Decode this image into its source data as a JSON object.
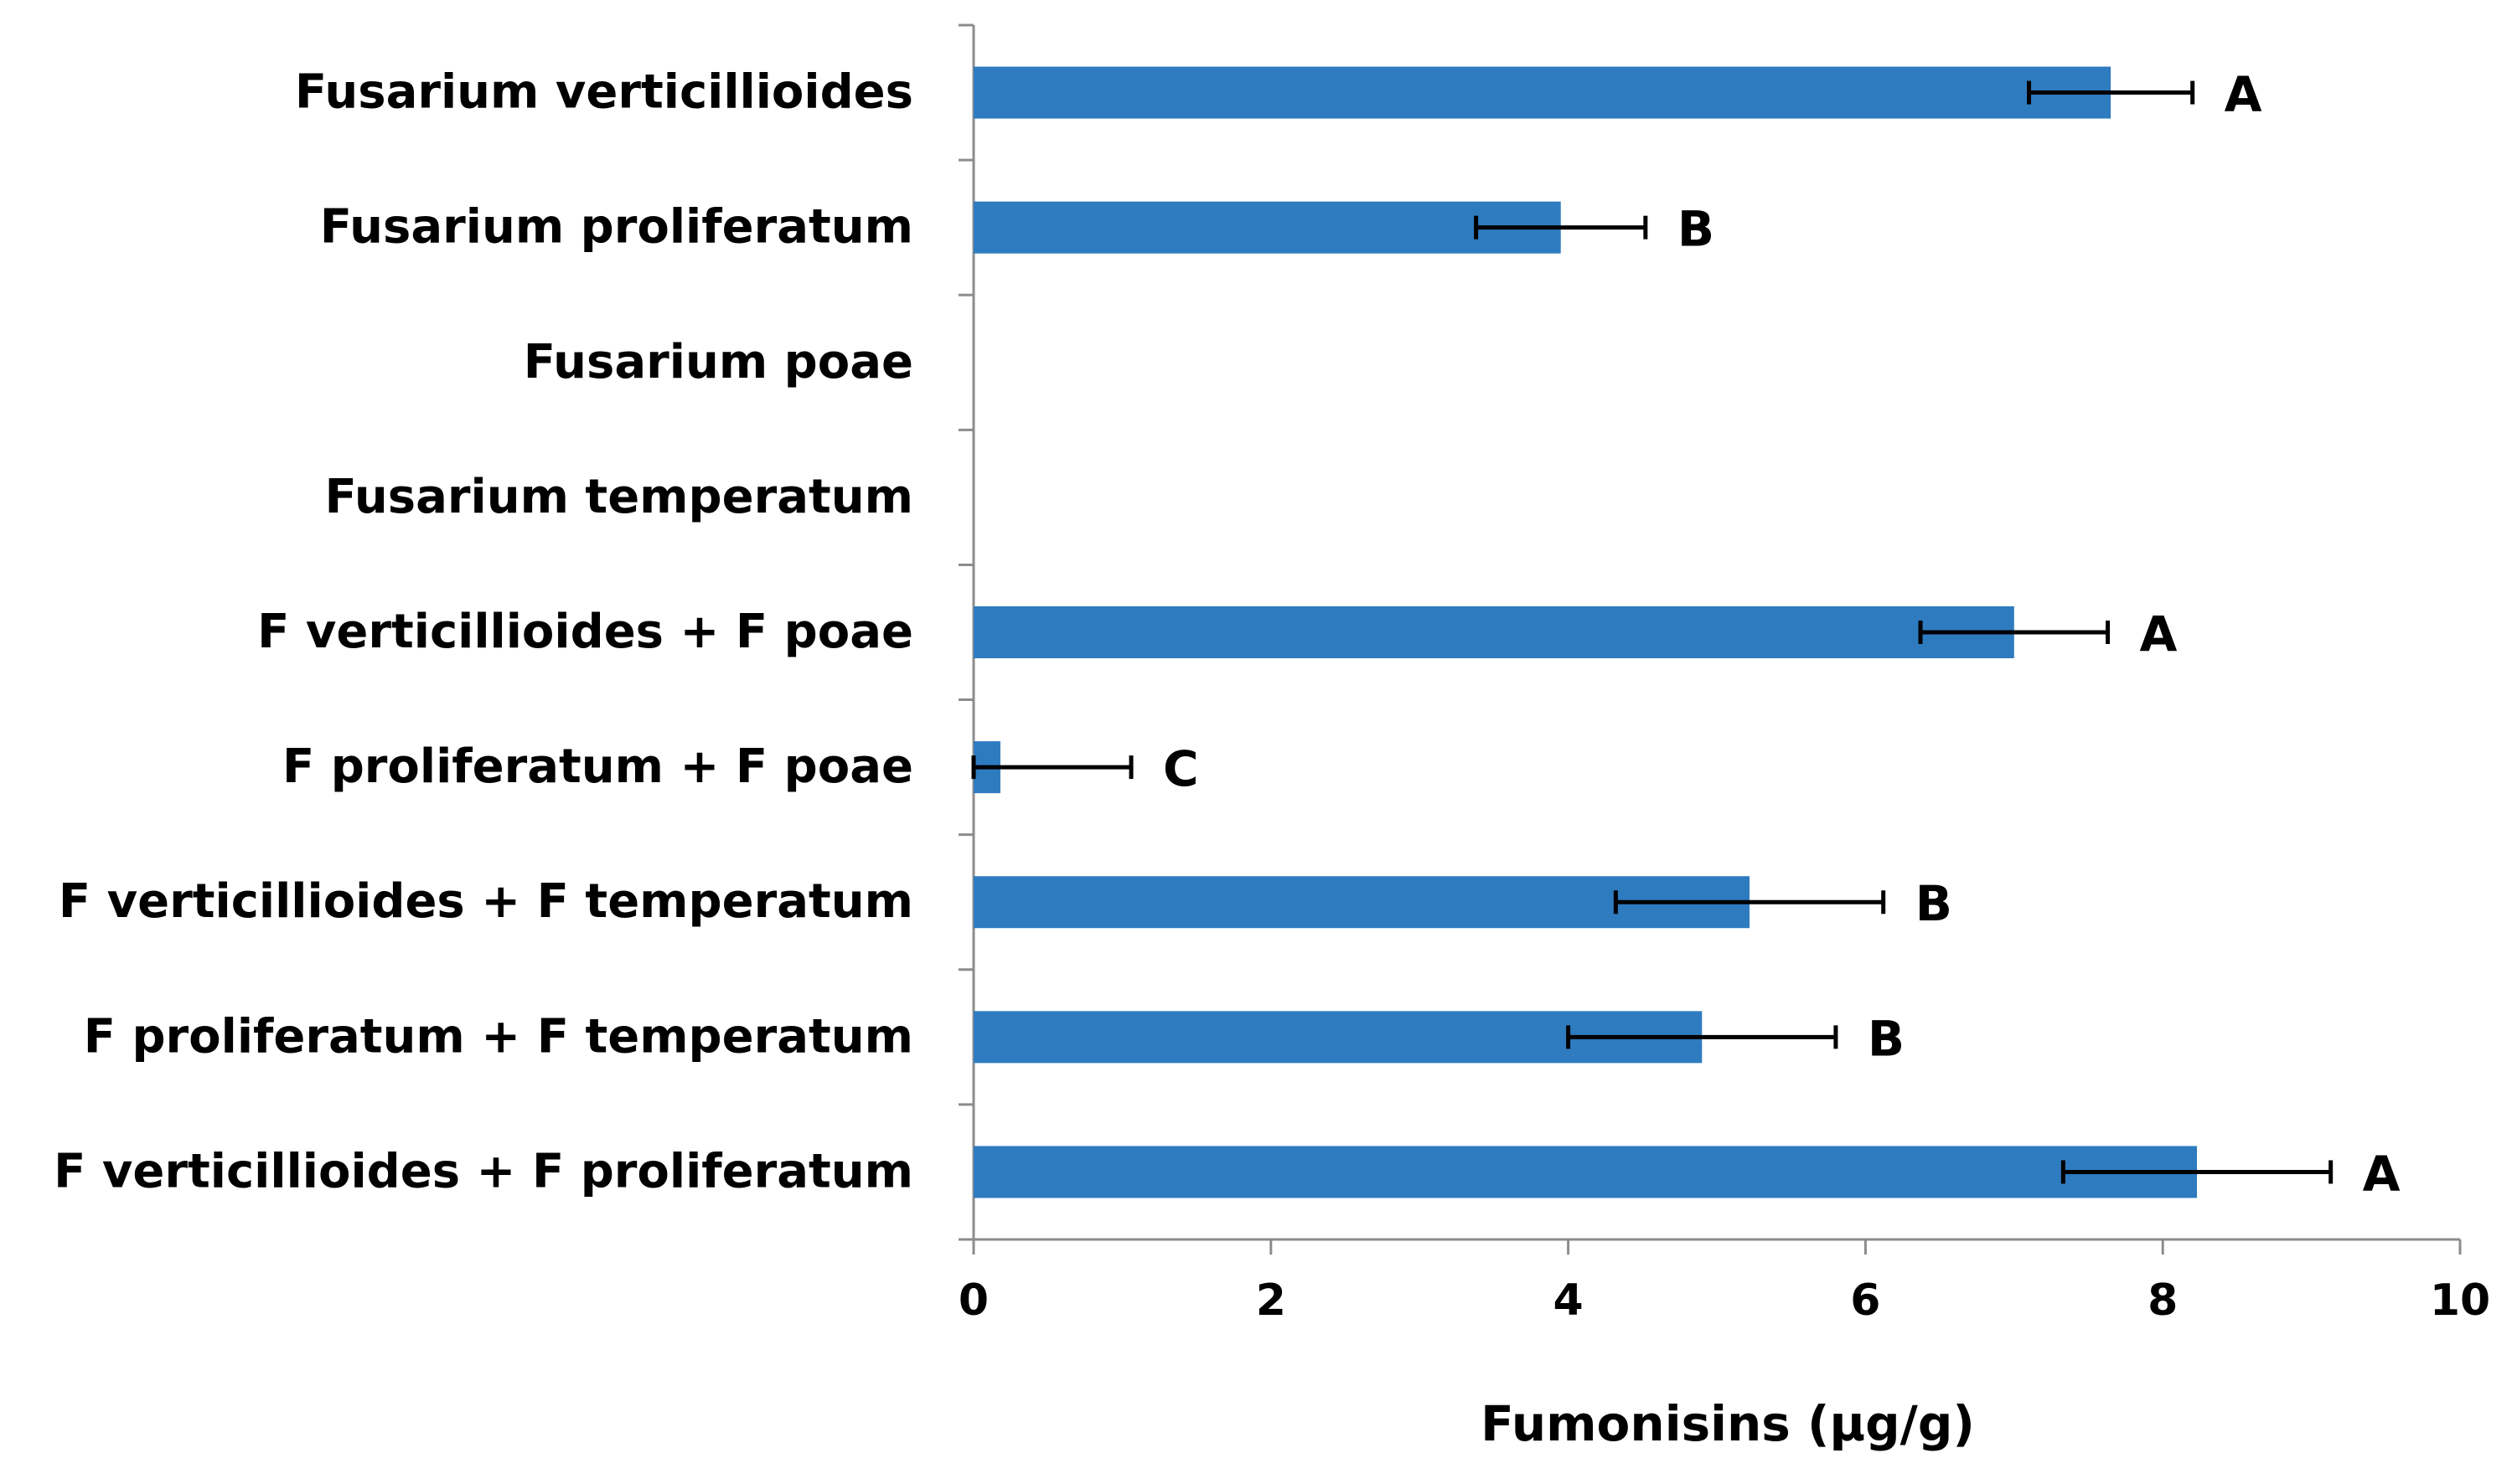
{
  "chart_data": {
    "type": "bar",
    "orientation": "horizontal",
    "categories": [
      "Fusarium verticillioides",
      "Fusarium proliferatum",
      "Fusarium poae",
      "Fusarium temperatum",
      "F verticillioides + F poae",
      "F proliferatum + F poae",
      "F verticillioides + F temperatum",
      "F proliferatum + F temperatum",
      "F verticillioides + F proliferatum"
    ],
    "values": [
      7.65,
      3.95,
      0,
      0,
      7.0,
      0.18,
      5.22,
      4.9,
      8.23
    ],
    "errors": [
      0.55,
      0.57,
      null,
      null,
      0.63,
      0.88,
      0.9,
      0.9,
      0.9
    ],
    "significance": [
      "A",
      "B",
      "",
      "",
      "A",
      "C",
      "B",
      "B",
      "A"
    ],
    "xlabel": "Fumonisins (µg/g)",
    "ylabel": "",
    "xlim": [
      0,
      10
    ],
    "xticks": [
      0,
      2,
      4,
      6,
      8,
      10
    ],
    "grid": false,
    "bar_color": "#2e7bc0"
  }
}
